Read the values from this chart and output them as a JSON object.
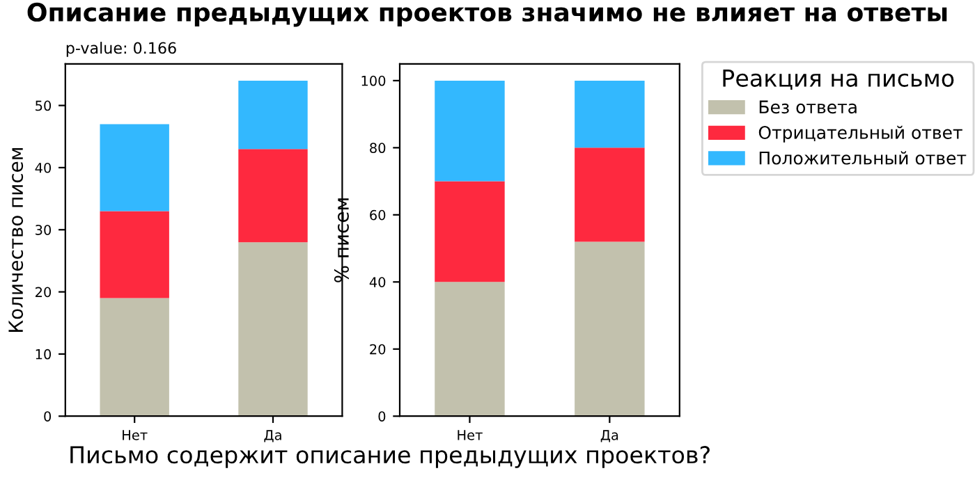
{
  "chart_data": [
    {
      "type": "bar",
      "title": "Описание предыдущих проектов значимо не влияет на ответы",
      "xlabel": "Письмо содержит описание предыдущих проектов?",
      "ylabel": "Количество писем",
      "annotations": [
        "p-value: 0.166"
      ],
      "categories": [
        "Нет",
        "Да"
      ],
      "stacked": true,
      "series": [
        {
          "color": "#c2c1ad",
          "values": [
            19,
            28
          ]
        },
        {
          "color": "#fe293f",
          "values": [
            14,
            15
          ]
        },
        {
          "color": "#33b8fe",
          "values": [
            14,
            11
          ]
        }
      ],
      "ylim": [
        0,
        56.7
      ],
      "yticks": [
        0,
        10,
        20,
        30,
        40,
        50
      ],
      "grid": false
    },
    {
      "type": "bar",
      "ylabel": "% писем",
      "legend_title": "Реакция на письмо",
      "legend": "right",
      "categories": [
        "Нет",
        "Да"
      ],
      "stacked": true,
      "series": [
        {
          "name": "Без ответа",
          "color": "#c2c1ad",
          "values": [
            40,
            52
          ]
        },
        {
          "name": "Отрицательный ответ",
          "color": "#fe293f",
          "values": [
            30,
            28
          ]
        },
        {
          "name": "Положительный ответ",
          "color": "#33b8fe",
          "values": [
            30,
            20
          ]
        }
      ],
      "ylim": [
        0,
        105
      ],
      "yticks": [
        0,
        20,
        40,
        60,
        80,
        100
      ],
      "grid": false
    }
  ]
}
